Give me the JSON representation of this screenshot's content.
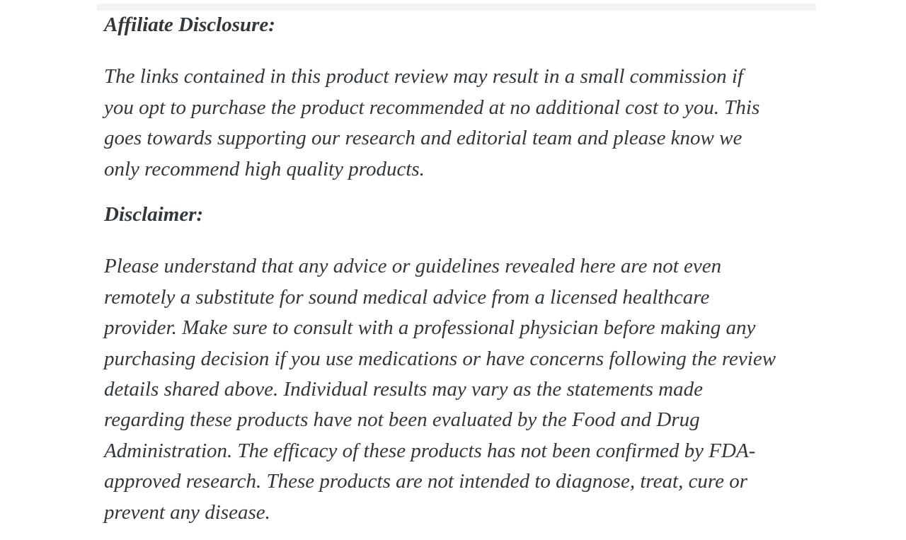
{
  "page": {
    "background_color": "#ffffff",
    "divider_color": "#f2f2f2",
    "text_color": "#32373c"
  },
  "article": {
    "affiliate": {
      "heading": "Affiliate Disclosure:",
      "body": [
        "The links contained in this product review may result in a small commission if",
        "you opt to purchase the product recommended at no additional cost to you. This",
        "goes towards supporting our research and editorial team and please know we",
        "only recommend high quality products."
      ]
    },
    "disclaimer": {
      "heading": "Disclaimer:",
      "body": [
        "Please understand that any advice or guidelines revealed here are not even",
        "remotely a substitute for sound medical advice from a licensed healthcare",
        "provider. Make sure to consult with a professional physician before making any",
        "purchasing decision if you use medications or have concerns following the review",
        "details shared above. Individual results may vary as the statements made",
        "regarding these products have not been evaluated by the Food and Drug",
        "Administration. The efficacy of these products has not been confirmed by FDA-",
        "approved research. These products are not intended to diagnose, treat, cure or",
        "prevent any disease."
      ]
    }
  }
}
